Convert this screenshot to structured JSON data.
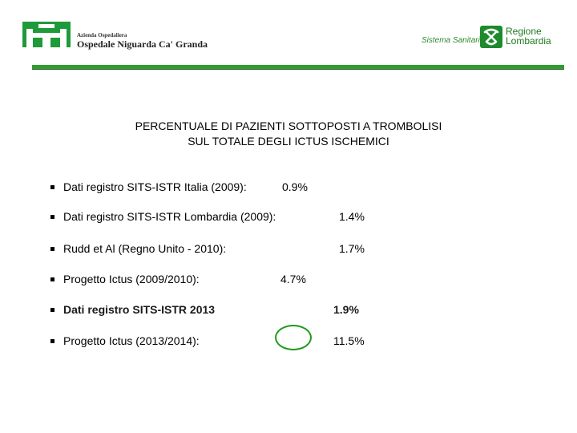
{
  "header": {
    "hospital_small": "Azienda Ospedaliera",
    "hospital_name": "Ospedale Niguarda Ca' Granda",
    "sistema": "Sistema Sanitario",
    "regione_line1": "Regione",
    "regione_line2": "Lombardia",
    "brand_green": "#2aa02a"
  },
  "title": {
    "line1": "PERCENTUALE DI PAZIENTI SOTTOPOSTI A TROMBOLISI",
    "line2": "SUL TOTALE DEGLI  ICTUS ISCHEMICI"
  },
  "items": [
    {
      "label": "Dati registro SITS-ISTR Italia (2009):",
      "value": "0.9%"
    },
    {
      "label": "Dati registro SITS-ISTR Lombardia (2009):",
      "value": "1.4%"
    },
    {
      "label": "Rudd et Al (Regno Unito - 2010):",
      "value": "1.7%"
    },
    {
      "label": "Progetto Ictus (2009/2010):",
      "value": "4.7%"
    },
    {
      "label": "Dati registro SITS-ISTR 2013",
      "value": "1.9%"
    },
    {
      "label": "Progetto Ictus (2013/2014):",
      "value": "11.5%"
    }
  ]
}
